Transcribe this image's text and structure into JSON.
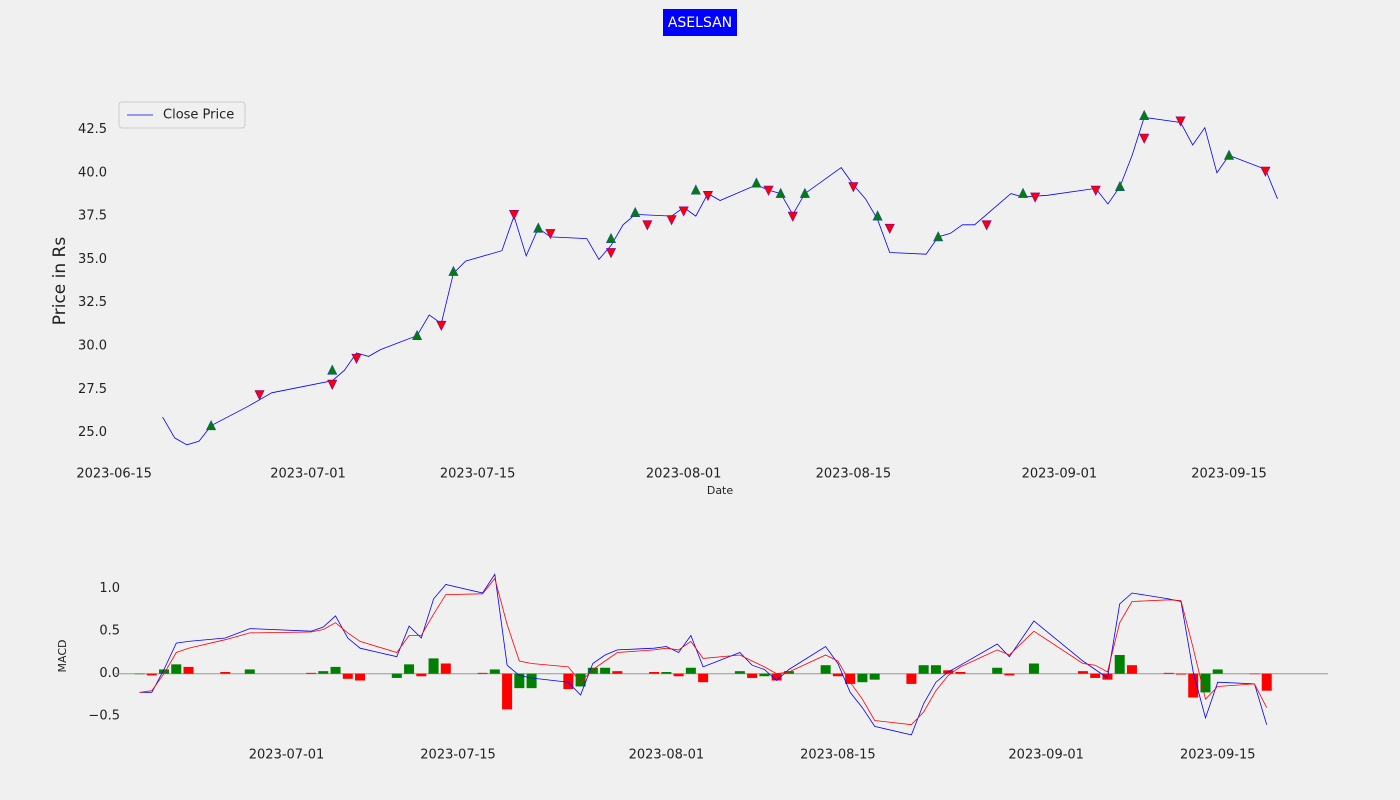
{
  "chart_data": [
    {
      "type": "line",
      "title": "ASELSAN",
      "ylabel": "Price in Rs",
      "xlabel": "Date",
      "legend": "upper left",
      "x": [
        "2023-06-19",
        "2023-06-20",
        "2023-06-21",
        "2023-06-22",
        "2023-06-23",
        "2023-06-26",
        "2023-06-28",
        "2023-07-03",
        "2023-07-04",
        "2023-07-05",
        "2023-07-06",
        "2023-07-07",
        "2023-07-10",
        "2023-07-11",
        "2023-07-12",
        "2023-07-13",
        "2023-07-14",
        "2023-07-17",
        "2023-07-18",
        "2023-07-19",
        "2023-07-20",
        "2023-07-21",
        "2023-07-24",
        "2023-07-25",
        "2023-07-26",
        "2023-07-27",
        "2023-07-28",
        "2023-07-31",
        "2023-08-01",
        "2023-08-02",
        "2023-08-03",
        "2023-08-04",
        "2023-08-07",
        "2023-08-08",
        "2023-08-09",
        "2023-08-10",
        "2023-08-11",
        "2023-08-14",
        "2023-08-15",
        "2023-08-16",
        "2023-08-17",
        "2023-08-18",
        "2023-08-21",
        "2023-08-22",
        "2023-08-23",
        "2023-08-24",
        "2023-08-25",
        "2023-08-28",
        "2023-08-29",
        "2023-08-31",
        "2023-09-04",
        "2023-09-05",
        "2023-09-06",
        "2023-09-07",
        "2023-09-08",
        "2023-09-11",
        "2023-09-12",
        "2023-09-13",
        "2023-09-14",
        "2023-09-15",
        "2023-09-18",
        "2023-09-19"
      ],
      "series": [
        {
          "name": "Close Price",
          "color": "blue",
          "values": [
            25.9,
            24.7,
            24.3,
            24.5,
            25.4,
            26.5,
            27.3,
            28.0,
            28.6,
            29.6,
            29.4,
            29.8,
            30.6,
            31.8,
            31.3,
            34.2,
            34.9,
            35.5,
            37.5,
            35.2,
            36.8,
            36.3,
            36.2,
            35.0,
            35.8,
            37.0,
            37.6,
            37.5,
            38.0,
            37.5,
            38.8,
            38.4,
            39.3,
            39.0,
            38.8,
            37.6,
            38.8,
            40.3,
            39.3,
            38.5,
            37.3,
            35.4,
            35.3,
            36.3,
            36.5,
            37.0,
            37.0,
            38.8,
            38.6,
            38.7,
            39.1,
            38.2,
            39.2,
            41.0,
            43.2,
            42.9,
            41.6,
            42.6,
            40.0,
            41.0,
            40.2,
            38.5
          ]
        }
      ],
      "buy_signals": {
        "color": "green",
        "x": [
          "2023-06-23",
          "2023-07-03",
          "2023-07-10",
          "2023-07-13",
          "2023-07-20",
          "2023-07-26",
          "2023-07-28",
          "2023-08-02",
          "2023-08-07",
          "2023-08-09",
          "2023-08-11",
          "2023-08-17",
          "2023-08-22",
          "2023-08-29",
          "2023-09-06",
          "2023-09-08",
          "2023-09-15"
        ],
        "values": [
          25.4,
          28.6,
          30.6,
          34.3,
          36.8,
          36.2,
          37.7,
          39.0,
          39.4,
          38.8,
          38.8,
          37.5,
          36.3,
          38.8,
          39.2,
          43.3,
          41.0
        ]
      },
      "sell_signals": {
        "color": "red",
        "x": [
          "2023-06-27",
          "2023-07-03",
          "2023-07-05",
          "2023-07-12",
          "2023-07-18",
          "2023-07-21",
          "2023-07-26",
          "2023-07-29",
          "2023-07-31",
          "2023-08-01",
          "2023-08-03",
          "2023-08-08",
          "2023-08-10",
          "2023-08-15",
          "2023-08-18",
          "2023-08-26",
          "2023-08-30",
          "2023-09-04",
          "2023-09-08",
          "2023-09-11",
          "2023-09-18"
        ],
        "values": [
          27.2,
          27.8,
          29.3,
          31.2,
          37.6,
          36.5,
          35.4,
          37.0,
          37.3,
          37.8,
          38.7,
          39.0,
          37.5,
          39.2,
          36.8,
          37.0,
          38.6,
          39.0,
          42.0,
          43.0,
          40.1
        ]
      },
      "xlim": [
        "2023-06-14",
        "2023-09-23"
      ],
      "xticks": [
        "2023-06-15",
        "2023-07-01",
        "2023-07-15",
        "2023-08-01",
        "2023-08-15",
        "2023-09-01",
        "2023-09-15"
      ],
      "ylim": [
        24,
        44.2
      ],
      "yticks": [
        {
          "value": 25,
          "label": "25.0"
        },
        {
          "value": 27.5,
          "label": "27.5"
        },
        {
          "value": 30,
          "label": "30.0"
        },
        {
          "value": 32.5,
          "label": "32.5"
        },
        {
          "value": 35,
          "label": "35.0"
        },
        {
          "value": 37.5,
          "label": "37.5"
        },
        {
          "value": 40,
          "label": "40.0"
        },
        {
          "value": 42.5,
          "label": "42.5"
        }
      ]
    },
    {
      "type": "macd",
      "ylabel": "MACD",
      "x": [
        "2023-06-19",
        "2023-06-20",
        "2023-06-21",
        "2023-06-22",
        "2023-06-23",
        "2023-06-26",
        "2023-06-28",
        "2023-07-03",
        "2023-07-04",
        "2023-07-05",
        "2023-07-06",
        "2023-07-07",
        "2023-07-10",
        "2023-07-11",
        "2023-07-12",
        "2023-07-13",
        "2023-07-14",
        "2023-07-17",
        "2023-07-18",
        "2023-07-19",
        "2023-07-20",
        "2023-07-21",
        "2023-07-24",
        "2023-07-25",
        "2023-07-26",
        "2023-07-27",
        "2023-07-28",
        "2023-07-31",
        "2023-08-01",
        "2023-08-02",
        "2023-08-03",
        "2023-08-04",
        "2023-08-07",
        "2023-08-08",
        "2023-08-09",
        "2023-08-10",
        "2023-08-11",
        "2023-08-14",
        "2023-08-15",
        "2023-08-16",
        "2023-08-17",
        "2023-08-18",
        "2023-08-21",
        "2023-08-22",
        "2023-08-23",
        "2023-08-24",
        "2023-08-25",
        "2023-08-28",
        "2023-08-29",
        "2023-08-31",
        "2023-09-04",
        "2023-09-05",
        "2023-09-06",
        "2023-09-07",
        "2023-09-08",
        "2023-09-11",
        "2023-09-12",
        "2023-09-13",
        "2023-09-14",
        "2023-09-15",
        "2023-09-18",
        "2023-09-19"
      ],
      "series": [
        {
          "color": "blue",
          "values": [
            -0.22,
            -0.22,
            0.05,
            0.36,
            0.38,
            0.42,
            0.53,
            0.5,
            0.55,
            0.68,
            0.42,
            0.3,
            0.2,
            0.56,
            0.42,
            0.88,
            1.05,
            0.95,
            1.17,
            0.1,
            -0.02,
            -0.05,
            -0.1,
            -0.25,
            0.12,
            0.22,
            0.28,
            0.3,
            0.32,
            0.25,
            0.45,
            0.08,
            0.25,
            0.1,
            0.05,
            -0.08,
            0.05,
            0.32,
            0.12,
            -0.22,
            -0.4,
            -0.62,
            -0.72,
            -0.35,
            -0.1,
            0.02,
            0.1,
            0.35,
            0.2,
            0.62,
            0.15,
            0.05,
            -0.05,
            0.82,
            0.95,
            0.88,
            0.85,
            0.02,
            -0.52,
            -0.1,
            -0.12,
            -0.6
          ]
        },
        {
          "color": "red",
          "values": [
            -0.22,
            -0.2,
            0.0,
            0.25,
            0.3,
            0.4,
            0.48,
            0.49,
            0.52,
            0.6,
            0.48,
            0.38,
            0.25,
            0.45,
            0.45,
            0.7,
            0.93,
            0.94,
            1.12,
            0.58,
            0.15,
            0.12,
            0.08,
            -0.1,
            0.05,
            0.15,
            0.25,
            0.28,
            0.3,
            0.28,
            0.38,
            0.18,
            0.22,
            0.15,
            0.08,
            0.0,
            0.02,
            0.22,
            0.15,
            -0.1,
            -0.3,
            -0.55,
            -0.6,
            -0.45,
            -0.2,
            -0.02,
            0.08,
            0.28,
            0.22,
            0.5,
            0.12,
            0.1,
            0.02,
            0.6,
            0.85,
            0.87,
            0.86,
            0.3,
            -0.3,
            -0.15,
            -0.12,
            -0.4
          ]
        }
      ],
      "histogram": {
        "up_color": "green",
        "down_color": "red",
        "values": [
          0.0,
          -0.02,
          0.05,
          0.11,
          0.08,
          0.02,
          0.05,
          0.01,
          0.03,
          0.08,
          -0.06,
          -0.08,
          -0.05,
          0.11,
          -0.03,
          0.18,
          0.12,
          0.01,
          0.05,
          -0.42,
          -0.17,
          -0.17,
          -0.18,
          -0.15,
          0.07,
          0.07,
          0.03,
          0.02,
          0.02,
          -0.03,
          0.07,
          -0.1,
          0.03,
          -0.05,
          -0.03,
          -0.08,
          0.03,
          0.1,
          -0.03,
          -0.12,
          -0.1,
          -0.07,
          -0.12,
          0.1,
          0.1,
          0.04,
          0.02,
          0.07,
          -0.02,
          0.12,
          0.03,
          -0.05,
          -0.07,
          0.22,
          0.1,
          0.01,
          -0.01,
          -0.28,
          -0.22,
          0.05,
          0.0,
          -0.2
        ]
      },
      "xlim": [
        "2023-06-17",
        "2023-09-24"
      ],
      "xticks": [
        "2023-07-01",
        "2023-07-15",
        "2023-08-01",
        "2023-08-15",
        "2023-09-01",
        "2023-09-15"
      ],
      "ylim": [
        -0.78,
        1.22
      ],
      "yticks": [
        {
          "value": 1,
          "label": "1.0"
        },
        {
          "value": 0.5,
          "label": "0.5"
        },
        {
          "value": 0,
          "label": "0.0"
        },
        {
          "value": -0.5,
          "label": "−0.5"
        }
      ]
    }
  ]
}
